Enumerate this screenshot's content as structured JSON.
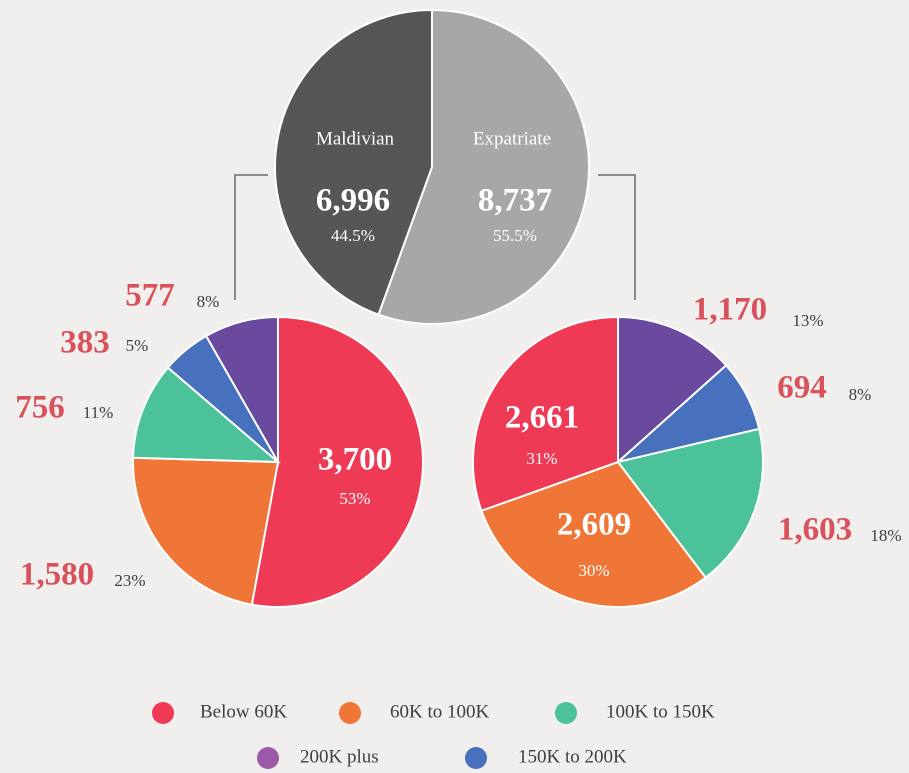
{
  "chart_data": [
    {
      "type": "pie",
      "categories": [
        "Expatriate",
        "Maldivian"
      ],
      "values": [
        8737,
        6996
      ],
      "value_labels": [
        "8,737",
        "6,996"
      ],
      "shares": [
        55.5,
        44.5
      ],
      "share_labels": [
        "55.5%",
        "44.5%"
      ],
      "colors": [
        "#a6a7a9",
        "#555657"
      ]
    },
    {
      "type": "pie",
      "values": [
        3700,
        1580,
        756,
        383,
        577
      ],
      "value_labels": [
        "3,700",
        "1,580",
        "756",
        "383",
        "577"
      ],
      "shares": [
        53,
        23,
        11,
        5,
        8
      ],
      "share_labels": [
        "53%",
        "23%",
        "11%",
        "5%",
        "8%"
      ],
      "colors": [
        "#ee3a55",
        "#f07637",
        "#4cc29a",
        "#4771bc",
        "#6a4a9f"
      ]
    },
    {
      "type": "pie",
      "values": [
        1170,
        694,
        1603,
        2609,
        2661
      ],
      "value_labels": [
        "1,170",
        "694",
        "1,603",
        "2,609",
        "2,661"
      ],
      "shares": [
        13,
        8,
        18,
        30,
        31
      ],
      "share_labels": [
        "13%",
        "8%",
        "18%",
        "30%",
        "31%"
      ],
      "colors": [
        "#6a4a9f",
        "#4771bc",
        "#4cc29a",
        "#f07637",
        "#ee3a55"
      ]
    }
  ],
  "legend": [
    {
      "name": "Below 60K",
      "color": "#ee3a55"
    },
    {
      "name": "60K to 100K",
      "color": "#f07637"
    },
    {
      "name": "100K to 150K",
      "color": "#4cc29a"
    },
    {
      "name": "200K plus",
      "color": "#9b59a8"
    },
    {
      "name": "150K to 200K",
      "color": "#4771bc"
    }
  ]
}
